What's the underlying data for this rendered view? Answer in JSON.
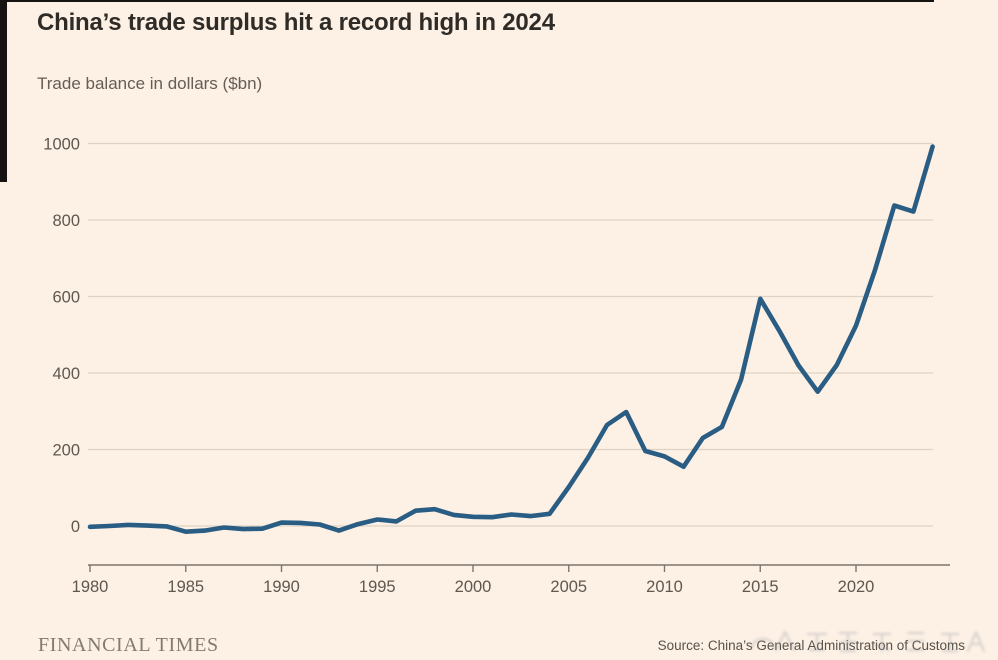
{
  "title": "China’s trade surplus hit a record high in 2024",
  "subtitle": "Trade balance in dollars ($bn)",
  "footer": {
    "brand": "FINANCIAL TIMES",
    "source": "Source: China’s General Administration of Customs"
  },
  "colors": {
    "background": "#fdf0e4",
    "line": "#2a5d84",
    "grid": "#ddd2c4",
    "axis": "#7c756c",
    "title_text": "#2f2b27",
    "subtitle_text": "#655e55",
    "tick_text": "#5f584f",
    "brand_text": "#837b70",
    "source_text": "#57524a",
    "watermark": "#8d98a5"
  },
  "chart_data": {
    "type": "line",
    "title": "China’s trade surplus hit a record high in 2024",
    "subtitle": "Trade balance in dollars ($bn)",
    "xlabel": "",
    "ylabel": "Trade balance in dollars ($bn)",
    "x": [
      1980,
      1981,
      1982,
      1983,
      1984,
      1985,
      1986,
      1987,
      1988,
      1989,
      1990,
      1991,
      1992,
      1993,
      1994,
      1995,
      1996,
      1997,
      1998,
      1999,
      2000,
      2001,
      2002,
      2003,
      2004,
      2005,
      2006,
      2007,
      2008,
      2009,
      2010,
      2011,
      2012,
      2013,
      2014,
      2015,
      2016,
      2017,
      2018,
      2019,
      2020,
      2021,
      2022,
      2023,
      2024
    ],
    "series": [
      {
        "name": "Trade balance ($bn)",
        "values": [
          -2,
          0,
          3,
          1,
          -1,
          -15,
          -12,
          -4,
          -8,
          -7,
          9,
          8,
          4,
          -12,
          5,
          17,
          12,
          40,
          44,
          29,
          24,
          23,
          30,
          26,
          32,
          102,
          178,
          264,
          298,
          196,
          182,
          155,
          230,
          259,
          383,
          594,
          510,
          420,
          351,
          421,
          524,
          670,
          838,
          822,
          992
        ]
      }
    ],
    "xticks": [
      1980,
      1985,
      1990,
      1995,
      2000,
      2005,
      2010,
      2015,
      2020
    ],
    "yticks": [
      0,
      200,
      400,
      600,
      800,
      1000
    ],
    "ylim": [
      -100,
      1100
    ],
    "xlim": [
      1980,
      2024
    ],
    "grid": "horizontal",
    "legend": "none"
  }
}
